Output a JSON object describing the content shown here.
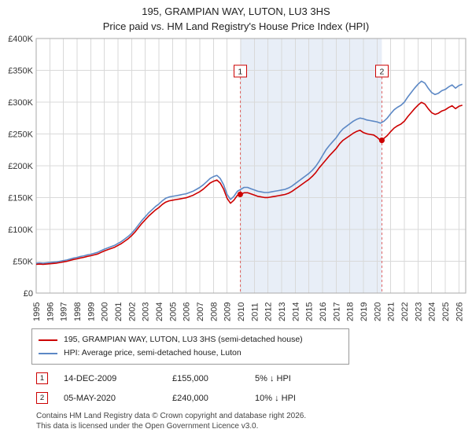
{
  "title": "195, GRAMPIAN WAY, LUTON, LU3 3HS",
  "subtitle": "Price paid vs. HM Land Registry's House Price Index (HPI)",
  "chart_data": {
    "type": "line",
    "unit": "GBP",
    "xlim": [
      1995,
      2026.5
    ],
    "ylim": [
      0,
      400000
    ],
    "x_start": 1995,
    "x_step": 0.25,
    "grid": true,
    "legend_position": "bottom",
    "series": [
      {
        "name": "195, GRAMPIAN WAY, LUTON, LU3 3HS (semi-detached house)",
        "color": "#cc0000",
        "values": [
          45100,
          45600,
          45100,
          45600,
          46100,
          46600,
          47000,
          48000,
          49000,
          49900,
          51400,
          52800,
          53800,
          55200,
          56200,
          57600,
          58600,
          60000,
          61400,
          63800,
          66200,
          68200,
          70100,
          72000,
          74900,
          77800,
          81600,
          85400,
          90200,
          96000,
          102700,
          109400,
          115200,
          121000,
          125800,
          130600,
          134400,
          139200,
          143000,
          145000,
          145900,
          146900,
          147800,
          148800,
          149800,
          151700,
          153600,
          156500,
          159400,
          163200,
          168000,
          172800,
          175700,
          177600,
          172800,
          163200,
          148800,
          141100,
          145900,
          153600,
          155000,
          157700,
          157700,
          155800,
          153900,
          152000,
          151100,
          150100,
          150100,
          151100,
          152000,
          153000,
          153900,
          154900,
          156800,
          159600,
          163400,
          167200,
          171000,
          174800,
          178600,
          183400,
          189100,
          196700,
          203000,
          209300,
          215800,
          221300,
          227000,
          234400,
          240000,
          243700,
          247400,
          251100,
          253900,
          255800,
          252100,
          250200,
          249300,
          248400,
          244800,
          240000,
          243000,
          247500,
          253800,
          259200,
          262800,
          265500,
          270000,
          277200,
          283500,
          289800,
          295200,
          299700,
          297000,
          289800,
          283500,
          280800,
          282600,
          286200,
          288000,
          291600,
          294300,
          289800,
          293400,
          295200
        ]
      },
      {
        "name": "HPI: Average price, semi-detached house, Luton",
        "color": "#5c88c5",
        "values": [
          47000,
          47500,
          47000,
          47500,
          48000,
          48500,
          49000,
          50000,
          51000,
          52000,
          53500,
          55000,
          56000,
          57500,
          58500,
          60000,
          61000,
          62500,
          64000,
          66500,
          69000,
          71000,
          73000,
          75000,
          78000,
          81000,
          85000,
          89000,
          94000,
          100000,
          107000,
          114000,
          120000,
          126000,
          131000,
          136000,
          140000,
          145000,
          149000,
          151000,
          152000,
          153000,
          154000,
          155000,
          156000,
          158000,
          160000,
          163000,
          166000,
          170000,
          175000,
          180000,
          183000,
          185000,
          180000,
          170000,
          155000,
          147000,
          152000,
          160000,
          163000,
          166000,
          166000,
          164000,
          162000,
          160000,
          159000,
          158000,
          158000,
          159000,
          160000,
          161000,
          162000,
          163000,
          165000,
          168000,
          172000,
          176000,
          180000,
          184000,
          188000,
          193000,
          199000,
          207000,
          216000,
          225000,
          232000,
          238000,
          244000,
          252000,
          258000,
          262000,
          266000,
          270000,
          273000,
          275000,
          274000,
          272000,
          271000,
          270000,
          269000,
          267000,
          270000,
          275000,
          282000,
          288000,
          292000,
          295000,
          300000,
          308000,
          315000,
          322000,
          328000,
          333000,
          330000,
          322000,
          315000,
          312000,
          314000,
          318000,
          320000,
          324000,
          327000,
          322000,
          326000,
          328000
        ]
      }
    ],
    "ytick_values": [
      0,
      50000,
      100000,
      150000,
      200000,
      250000,
      300000,
      350000,
      400000
    ],
    "ytick_labels": [
      "£0",
      "£50K",
      "£100K",
      "£150K",
      "£200K",
      "£250K",
      "£300K",
      "£350K",
      "£400K"
    ],
    "xtick_labels": [
      "1995",
      "1996",
      "1997",
      "1998",
      "1999",
      "2000",
      "2001",
      "2002",
      "2003",
      "2004",
      "2005",
      "2006",
      "2007",
      "2008",
      "2009",
      "2010",
      "2011",
      "2012",
      "2013",
      "2014",
      "2015",
      "2016",
      "2017",
      "2018",
      "2019",
      "2020",
      "2021",
      "2022",
      "2023",
      "2024",
      "2025",
      "2026"
    ],
    "markers": [
      {
        "label": "1",
        "x": 2009.96,
        "value": 155000
      },
      {
        "label": "2",
        "x": 2020.35,
        "value": 240000
      }
    ],
    "shaded_region": {
      "from": 2009.96,
      "to": 2020.35,
      "color": "#e8eef7"
    },
    "colors": {
      "grid": "#d9d9d9",
      "border": "#aaaaaa",
      "dashed_line": "#e06666",
      "axis_text": "#333333",
      "accent_red": "#cc0000",
      "hpi_blue": "#5c88c5"
    }
  },
  "annotations": [
    {
      "num": "1",
      "date": "14-DEC-2009",
      "price": "£155,000",
      "hpi_note": "5% ↓ HPI"
    },
    {
      "num": "2",
      "date": "05-MAY-2020",
      "price": "£240,000",
      "hpi_note": "10% ↓ HPI"
    }
  ],
  "footer": {
    "line1": "Contains HM Land Registry data © Crown copyright and database right 2026.",
    "line2": "This data is licensed under the Open Government Licence v3.0."
  }
}
